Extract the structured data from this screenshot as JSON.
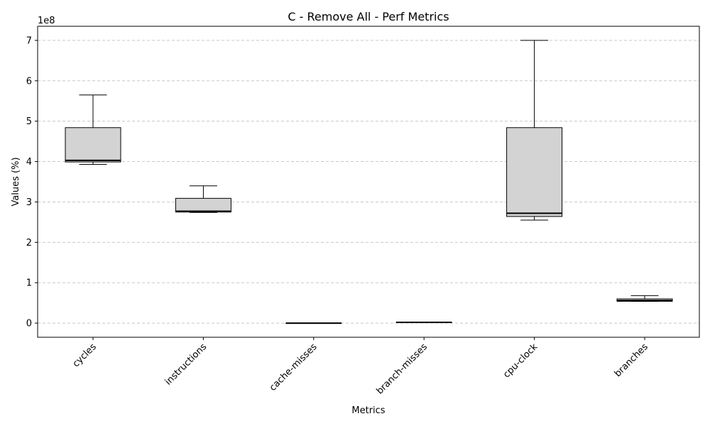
{
  "chart_data": {
    "type": "box",
    "title": "C - Remove All - Perf Metrics",
    "xlabel": "Metrics",
    "ylabel": "Values (%)",
    "offset_label": "1e8",
    "ylim": [
      -0.35,
      7.35
    ],
    "yticks": [
      0,
      1,
      2,
      3,
      4,
      5,
      6,
      7
    ],
    "grid": "y",
    "categories": [
      "cycles",
      "instructions",
      "cache-misses",
      "branch-misses",
      "cpu-clock",
      "branches"
    ],
    "boxes": [
      {
        "whislo": 3.93,
        "q1": 3.99,
        "med": 4.03,
        "q3": 4.84,
        "whishi": 5.65
      },
      {
        "whislo": 2.74,
        "q1": 2.75,
        "med": 2.77,
        "q3": 3.09,
        "whishi": 3.4
      },
      {
        "whislo": 0.0,
        "q1": 0.0,
        "med": 0.0,
        "q3": 0.0,
        "whishi": 0.0
      },
      {
        "whislo": 0.01,
        "q1": 0.01,
        "med": 0.02,
        "q3": 0.02,
        "whishi": 0.02
      },
      {
        "whislo": 2.55,
        "q1": 2.64,
        "med": 2.72,
        "q3": 4.84,
        "whishi": 7.0
      },
      {
        "whislo": 0.54,
        "q1": 0.54,
        "med": 0.56,
        "q3": 0.6,
        "whishi": 0.68
      }
    ],
    "colors": {
      "box_fill": "#d3d3d3",
      "edge": "#000000",
      "grid": "#c8c8c8"
    }
  }
}
